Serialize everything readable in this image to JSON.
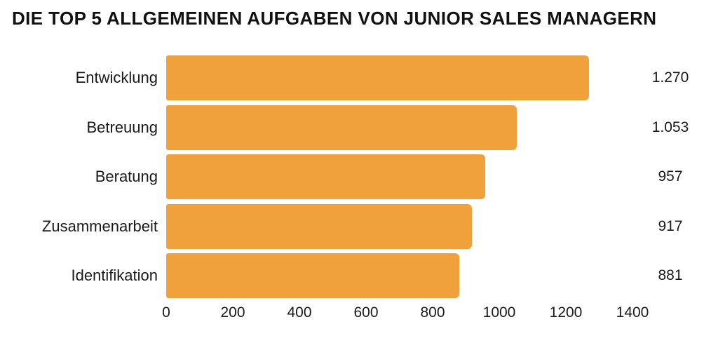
{
  "title": "DIE TOP 5 ALLGEMEINEN AUFGABEN VON JUNIOR SALES MANAGERN",
  "colors": {
    "bar": "#F1A13B",
    "title_text": "#111111",
    "label_text": "#1A1A1A",
    "background": "#FFFFFF"
  },
  "chart_data": {
    "type": "bar",
    "orientation": "horizontal",
    "title": "DIE TOP 5 ALLGEMEINEN AUFGABEN VON JUNIOR SALES MANAGERN",
    "categories": [
      "Entwicklung",
      "Betreuung",
      "Beratung",
      "Zusammenarbeit",
      "Identifikation"
    ],
    "values": [
      1270,
      1053,
      957,
      917,
      881
    ],
    "value_labels": [
      "1.270",
      "1.053",
      "957",
      "917",
      "881"
    ],
    "x_ticks": [
      0,
      200,
      400,
      600,
      800,
      1000,
      1200,
      1400
    ],
    "x_tick_labels": [
      "0",
      "200",
      "400",
      "600",
      "800",
      "1000",
      "1200",
      "1400"
    ],
    "xlim": [
      0,
      1400
    ],
    "xlabel": "",
    "ylabel": "",
    "grid": false,
    "legend": null,
    "value_labels_position": "right-of-chart",
    "category_labels_position": "left"
  }
}
